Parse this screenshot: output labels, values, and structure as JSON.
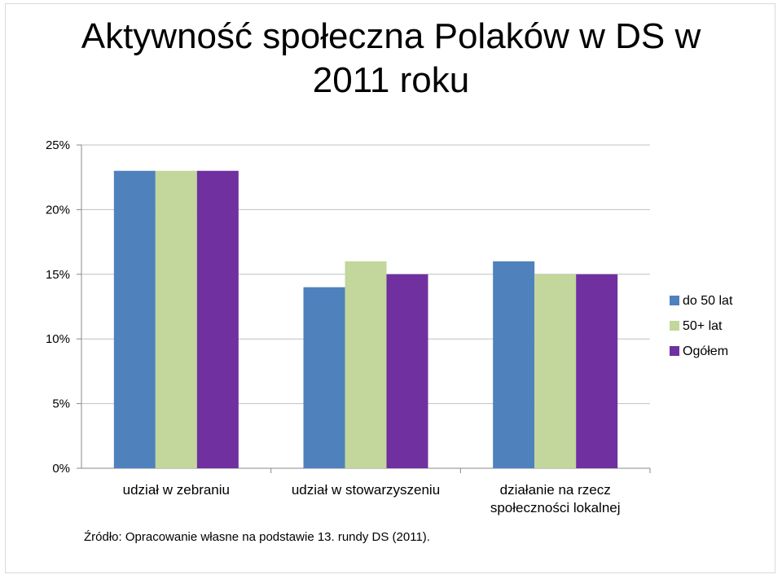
{
  "title_line1": "Aktywność społeczna Polaków w DS w",
  "title_line2": "2011 roku",
  "source": "Źródło: Opracowanie własne na podstawie 13. rundy DS (2011).",
  "chart_data": {
    "type": "bar",
    "title": "Aktywność społeczna Polaków w DS w 2011 roku",
    "categories": [
      [
        "udział w zebraniu"
      ],
      [
        "udział w stowarzyszeniu"
      ],
      [
        "działanie na rzecz",
        "społeczności lokalnej"
      ]
    ],
    "series": [
      {
        "name": "do 50 lat",
        "color": "#4f81bd",
        "values": [
          23,
          14,
          16
        ]
      },
      {
        "name": "50+ lat",
        "color": "#c3d69b",
        "values": [
          23,
          16,
          15
        ]
      },
      {
        "name": "Ogółem",
        "color": "#7030a0",
        "values": [
          23,
          15,
          15
        ]
      }
    ],
    "yticks": [
      "0%",
      "5%",
      "10%",
      "15%",
      "20%",
      "25%"
    ],
    "ylim": [
      0,
      25
    ],
    "grid": true,
    "legend": "right",
    "xlabel": "",
    "ylabel": ""
  }
}
